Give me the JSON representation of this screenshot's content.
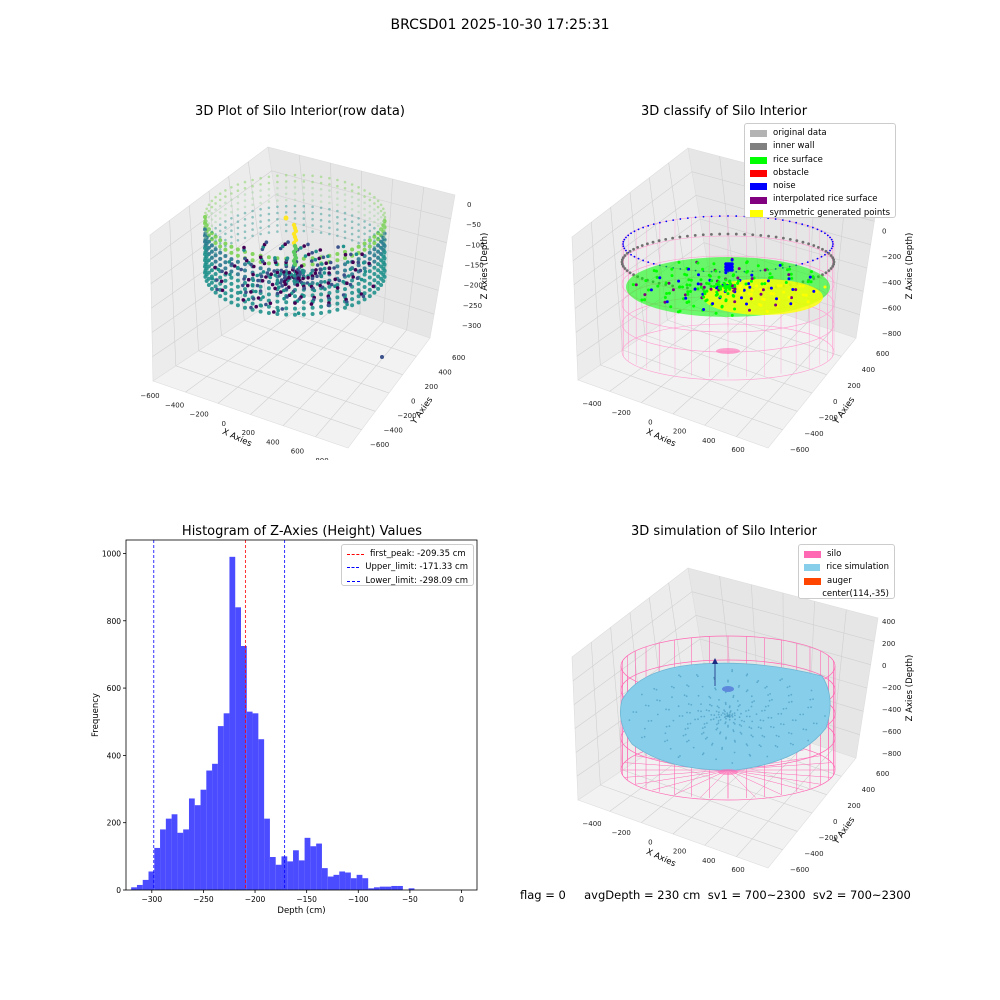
{
  "suptitle": "BRCSD01 2025-10-30 17:25:31",
  "panels": {
    "raw": {
      "title": "3D Plot of Silo Interior(row data)",
      "xlabel": "X Axies",
      "ylabel": "Y Axies",
      "zlabel": "Z Axies (Depth)",
      "xticks": [
        "−600",
        "−400",
        "−200",
        "0",
        "200",
        "400",
        "600",
        "800"
      ],
      "yticks": [
        "600",
        "400",
        "200",
        "0",
        "−200",
        "−400",
        "−600"
      ],
      "zticks": [
        "0",
        "−50",
        "−100",
        "−150",
        "−200",
        "−250",
        "−300"
      ]
    },
    "classify": {
      "title": "3D classify of Silo Interior",
      "xlabel": "X Axies",
      "ylabel": "Y Axies",
      "zlabel": "Z Axies (Depth)",
      "xticks": [
        "−400",
        "−200",
        "0",
        "200",
        "400",
        "600"
      ],
      "yticks": [
        "600",
        "400",
        "200",
        "0",
        "−200",
        "−400",
        "−600"
      ],
      "zticks": [
        "200",
        "0",
        "−200",
        "−400",
        "−600",
        "−800"
      ],
      "legend": [
        {
          "label": "original data",
          "color": "#b3b3b3"
        },
        {
          "label": "inner wall",
          "color": "#808080"
        },
        {
          "label": "rice surface",
          "color": "#00ff00"
        },
        {
          "label": "obstacle",
          "color": "#ff0000"
        },
        {
          "label": "noise",
          "color": "#0000ff"
        },
        {
          "label": "interpolated rice surface",
          "color": "#800080"
        },
        {
          "label": "symmetric generated points",
          "color": "#ffff00"
        }
      ]
    },
    "simulation": {
      "title": "3D simulation of Silo Interior",
      "xlabel": "X Axies",
      "ylabel": "Y Axies",
      "zlabel": "Z Axies (Depth)",
      "xticks": [
        "−400",
        "−200",
        "0",
        "200",
        "400",
        "600"
      ],
      "yticks": [
        "600",
        "400",
        "200",
        "0",
        "−200",
        "−400",
        "−600"
      ],
      "zticks": [
        "400",
        "200",
        "0",
        "−200",
        "−400",
        "−600",
        "−800"
      ],
      "legend": [
        {
          "label": "silo",
          "color": "#ff69b4"
        },
        {
          "label": "rice simulation",
          "color": "#87ceeb"
        },
        {
          "label": "auger",
          "color": "#ff4500"
        },
        {
          "label": "center(114,-35)",
          "color": ""
        }
      ]
    }
  },
  "footer": "flag = 0     avgDepth = 230 cm  sv1 = 700~2300  sv2 = 700~2300",
  "chart_data": [
    {
      "type": "scatter",
      "title": "3D Plot of Silo Interior(row data)",
      "xlabel": "X Axies",
      "ylabel": "Y Axies",
      "zlabel": "Z Axies (Depth)",
      "xlim": [
        -600,
        900
      ],
      "ylim": [
        -650,
        650
      ],
      "zlim": [
        -330,
        10
      ]
    },
    {
      "type": "scatter",
      "title": "3D classify of Silo Interior",
      "xlabel": "X Axies",
      "ylabel": "Y Axies",
      "zlabel": "Z Axies (Depth)",
      "series": [
        {
          "name": "original data"
        },
        {
          "name": "inner wall"
        },
        {
          "name": "rice surface"
        },
        {
          "name": "obstacle"
        },
        {
          "name": "noise"
        },
        {
          "name": "interpolated rice surface"
        },
        {
          "name": "symmetric generated points"
        }
      ]
    },
    {
      "type": "bar",
      "title": "Histogram of Z-Axies (Height) Values",
      "xlabel": "Depth (cm)",
      "ylabel": "Frequency",
      "xlim": [
        -325,
        15
      ],
      "ylim": [
        0,
        1040
      ],
      "xticks": [
        -300,
        -250,
        -200,
        -150,
        -100,
        -50,
        0
      ],
      "yticks": [
        0,
        200,
        400,
        600,
        800,
        1000
      ],
      "bin_start": -320,
      "bin_width": 5.6,
      "values": [
        8,
        15,
        30,
        55,
        125,
        180,
        212,
        225,
        170,
        180,
        272,
        252,
        298,
        355,
        375,
        487,
        525,
        990,
        840,
        725,
        530,
        525,
        448,
        212,
        98,
        75,
        100,
        85,
        118,
        88,
        155,
        130,
        138,
        65,
        40,
        45,
        55,
        52,
        35,
        45,
        35,
        5,
        8,
        10,
        10,
        12,
        12,
        0,
        5,
        0
      ],
      "lines": [
        {
          "label": "first_peak: -209.35 cm",
          "x": -209.35,
          "color": "#ff0000"
        },
        {
          "label": "Upper_limit: -171.33 cm",
          "x": -171.33,
          "color": "#0000ff"
        },
        {
          "label": "Lower_limit: -298.09 cm",
          "x": -298.09,
          "color": "#0000ff"
        }
      ],
      "legend_placement": "top-right",
      "bar_color": "#4b4bff"
    },
    {
      "type": "scatter",
      "title": "3D simulation of Silo Interior",
      "xlabel": "X Axies",
      "ylabel": "Y Axies",
      "zlabel": "Z Axies (Depth)",
      "series": [
        {
          "name": "silo"
        },
        {
          "name": "rice simulation"
        },
        {
          "name": "auger"
        }
      ],
      "annotations": [
        "center(114,-35)"
      ]
    }
  ]
}
